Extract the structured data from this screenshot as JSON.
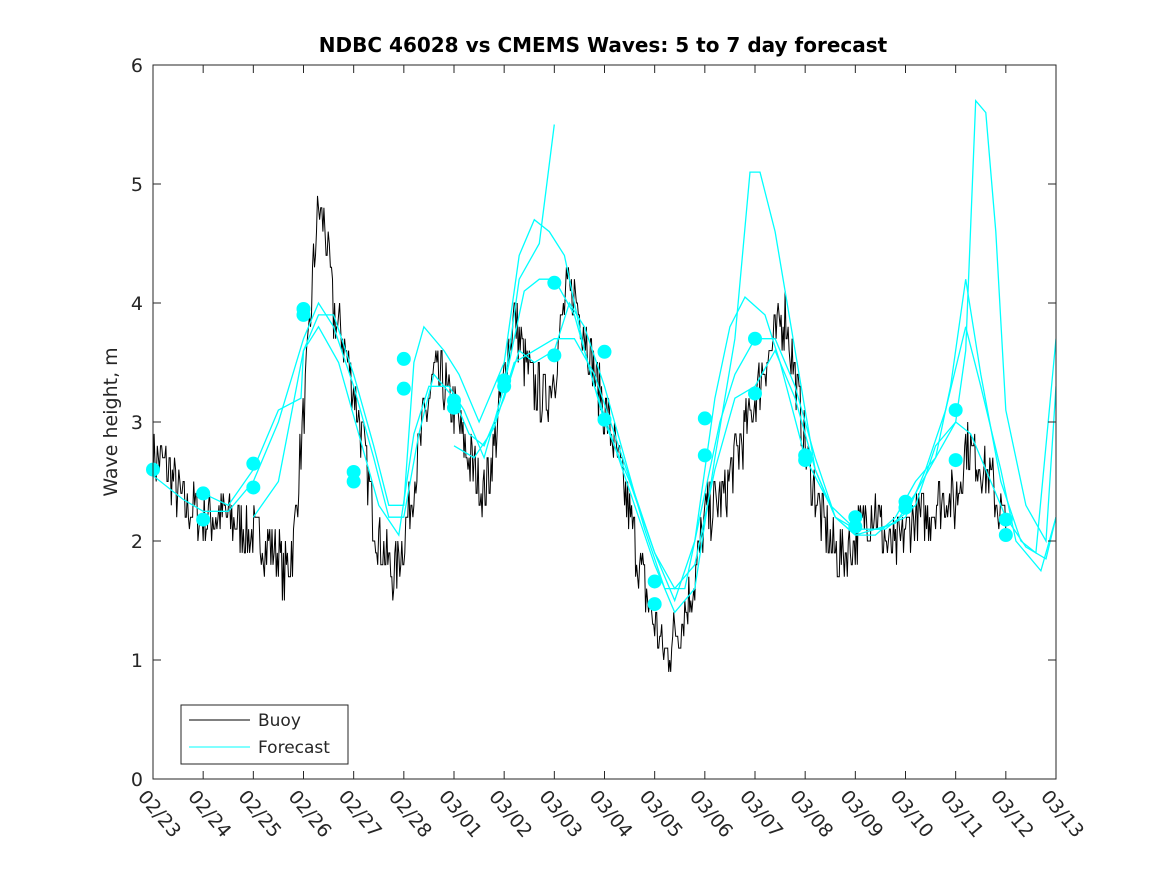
{
  "chart_data": {
    "type": "line",
    "title": "NDBC 46028 vs CMEMS Waves: 5 to 7 day forecast",
    "xlabel": "",
    "ylabel": "Wave height, m",
    "ylim": [
      0,
      6
    ],
    "yticks": [
      "0",
      "1",
      "2",
      "3",
      "4",
      "5",
      "6"
    ],
    "xlim": [
      0,
      18
    ],
    "xticks": [
      "02/23",
      "02/24",
      "02/25",
      "02/26",
      "02/27",
      "02/28",
      "03/01",
      "03/02",
      "03/03",
      "03/04",
      "03/05",
      "03/06",
      "03/07",
      "03/08",
      "03/09",
      "03/10",
      "03/11",
      "03/12",
      "03/13"
    ],
    "grid": false,
    "legend": {
      "position": "bottom-left",
      "entries": [
        "Buoy",
        "Forecast"
      ]
    },
    "colors": {
      "buoy": "#000000",
      "forecast": "#00ffff",
      "axis": "#262626"
    },
    "series": [
      {
        "name": "Buoy",
        "points": [
          [
            0,
            2.7
          ],
          [
            0.3,
            2.6
          ],
          [
            0.6,
            2.3
          ],
          [
            1,
            2.2
          ],
          [
            1.4,
            2.2
          ],
          [
            1.8,
            2.1
          ],
          [
            2.2,
            2.0
          ],
          [
            2.5,
            1.9
          ],
          [
            2.6,
            1.65
          ],
          [
            2.8,
            2.0
          ],
          [
            2.95,
            2.8
          ],
          [
            3.1,
            3.6
          ],
          [
            3.2,
            4.3
          ],
          [
            3.3,
            4.8
          ],
          [
            3.45,
            4.6
          ],
          [
            3.6,
            3.9
          ],
          [
            3.8,
            3.7
          ],
          [
            4.0,
            3.3
          ],
          [
            4.2,
            2.8
          ],
          [
            4.4,
            2.2
          ],
          [
            4.6,
            1.9
          ],
          [
            4.8,
            1.7
          ],
          [
            5.0,
            2.0
          ],
          [
            5.2,
            2.5
          ],
          [
            5.4,
            3.0
          ],
          [
            5.6,
            3.4
          ],
          [
            5.8,
            3.3
          ],
          [
            6.0,
            3.1
          ],
          [
            6.2,
            2.8
          ],
          [
            6.4,
            2.6
          ],
          [
            6.6,
            2.4
          ],
          [
            6.8,
            2.8
          ],
          [
            7.0,
            3.4
          ],
          [
            7.2,
            3.9
          ],
          [
            7.4,
            3.5
          ],
          [
            7.6,
            3.3
          ],
          [
            7.8,
            3.2
          ],
          [
            8.0,
            3.4
          ],
          [
            8.2,
            4.0
          ],
          [
            8.4,
            4.1
          ],
          [
            8.6,
            3.8
          ],
          [
            8.8,
            3.4
          ],
          [
            9.0,
            3.1
          ],
          [
            9.2,
            2.8
          ],
          [
            9.4,
            2.4
          ],
          [
            9.6,
            2.0
          ],
          [
            9.8,
            1.6
          ],
          [
            10.0,
            1.3
          ],
          [
            10.2,
            1.05
          ],
          [
            10.4,
            1.2
          ],
          [
            10.6,
            1.4
          ],
          [
            10.8,
            1.7
          ],
          [
            11.0,
            2.2
          ],
          [
            11.2,
            2.3
          ],
          [
            11.4,
            2.4
          ],
          [
            11.6,
            2.7
          ],
          [
            11.8,
            2.9
          ],
          [
            12.0,
            3.2
          ],
          [
            12.2,
            3.5
          ],
          [
            12.4,
            3.7
          ],
          [
            12.6,
            3.9
          ],
          [
            12.8,
            3.4
          ],
          [
            13.0,
            2.8
          ],
          [
            13.2,
            2.4
          ],
          [
            13.4,
            2.1
          ],
          [
            13.6,
            1.9
          ],
          [
            13.8,
            1.9
          ],
          [
            14.0,
            2.0
          ],
          [
            14.2,
            2.2
          ],
          [
            14.4,
            2.3
          ],
          [
            14.6,
            2.0
          ],
          [
            14.8,
            1.9
          ],
          [
            15.0,
            2.1
          ],
          [
            15.2,
            2.2
          ],
          [
            15.4,
            2.2
          ],
          [
            15.6,
            2.3
          ],
          [
            15.8,
            2.4
          ],
          [
            16.0,
            2.3
          ],
          [
            16.2,
            2.8
          ],
          [
            16.4,
            2.7
          ],
          [
            16.6,
            2.6
          ],
          [
            16.8,
            2.4
          ],
          [
            17.0,
            2.1
          ]
        ]
      },
      {
        "name": "Forecast",
        "line1": [
          [
            0,
            2.55
          ],
          [
            0.6,
            2.35
          ],
          [
            1.0,
            2.25
          ],
          [
            1.5,
            2.25
          ],
          [
            2.0,
            2.5
          ],
          [
            2.5,
            3.0
          ],
          [
            3.0,
            3.7
          ],
          [
            3.3,
            4.0
          ],
          [
            3.6,
            3.8
          ],
          [
            4.0,
            3.3
          ],
          [
            4.4,
            2.7
          ],
          [
            4.7,
            2.2
          ],
          [
            5.0,
            2.2
          ],
          [
            5.3,
            2.9
          ],
          [
            5.6,
            3.4
          ],
          [
            6.0,
            3.2
          ],
          [
            6.3,
            2.9
          ],
          [
            6.6,
            2.8
          ],
          [
            7.0,
            3.2
          ],
          [
            7.3,
            3.6
          ],
          [
            7.6,
            3.5
          ],
          [
            8.0,
            3.6
          ],
          [
            8.3,
            4.0
          ],
          [
            8.6,
            3.8
          ],
          [
            9.0,
            3.3
          ],
          [
            9.4,
            2.7
          ],
          [
            9.8,
            2.1
          ],
          [
            10.2,
            1.6
          ],
          [
            10.6,
            1.6
          ],
          [
            11.0,
            2.4
          ],
          [
            11.3,
            3.0
          ],
          [
            11.6,
            3.4
          ],
          [
            12.0,
            3.7
          ],
          [
            12.4,
            3.7
          ],
          [
            12.8,
            3.3
          ],
          [
            13.2,
            2.7
          ],
          [
            13.6,
            2.2
          ],
          [
            14.0,
            2.05
          ],
          [
            14.4,
            2.1
          ],
          [
            14.8,
            2.15
          ],
          [
            15.2,
            2.4
          ],
          [
            15.6,
            2.7
          ],
          [
            16.0,
            3.0
          ],
          [
            16.3,
            2.9
          ],
          [
            16.6,
            2.6
          ],
          [
            17.0,
            2.2
          ],
          [
            17.4,
            1.95
          ],
          [
            17.8,
            1.85
          ],
          [
            18.0,
            2.2
          ]
        ],
        "line2": [
          [
            1.0,
            2.4
          ],
          [
            1.5,
            2.3
          ],
          [
            2.0,
            2.6
          ],
          [
            2.5,
            3.1
          ],
          [
            2.95,
            3.2
          ],
          [
            3.0,
            3.6
          ],
          [
            3.3,
            3.9
          ],
          [
            3.6,
            3.9
          ],
          [
            4.0,
            3.4
          ],
          [
            4.4,
            2.8
          ],
          [
            4.7,
            2.3
          ],
          [
            5.0,
            2.3
          ],
          [
            5.2,
            3.5
          ],
          [
            5.4,
            3.8
          ],
          [
            5.8,
            3.6
          ],
          [
            6.1,
            3.4
          ],
          [
            6.5,
            3.0
          ],
          [
            7.0,
            3.5
          ],
          [
            7.3,
            4.4
          ],
          [
            7.6,
            4.7
          ],
          [
            7.9,
            4.6
          ],
          [
            8.2,
            4.4
          ],
          [
            8.6,
            3.6
          ],
          [
            9.0,
            3.0
          ],
          [
            9.5,
            2.5
          ],
          [
            10.0,
            1.9
          ],
          [
            10.4,
            1.5
          ],
          [
            10.8,
            2.0
          ],
          [
            11.2,
            3.2
          ],
          [
            11.5,
            3.8
          ],
          [
            11.8,
            4.05
          ],
          [
            12.2,
            3.9
          ],
          [
            12.5,
            3.5
          ],
          [
            13.0,
            2.7
          ],
          [
            13.5,
            2.3
          ],
          [
            14.0,
            2.1
          ],
          [
            14.5,
            2.1
          ],
          [
            15.0,
            2.2
          ],
          [
            15.4,
            2.6
          ],
          [
            15.8,
            3.1
          ],
          [
            16.2,
            3.8
          ],
          [
            16.5,
            3.3
          ],
          [
            16.9,
            2.6
          ],
          [
            17.2,
            2.0
          ],
          [
            17.7,
            1.75
          ],
          [
            18.0,
            2.2
          ]
        ],
        "line3": [
          [
            2.0,
            2.2
          ],
          [
            2.5,
            2.5
          ],
          [
            3.0,
            3.6
          ],
          [
            3.3,
            3.8
          ],
          [
            3.7,
            3.5
          ],
          [
            4.1,
            2.9
          ],
          [
            4.5,
            2.3
          ],
          [
            4.9,
            2.05
          ],
          [
            5.2,
            2.9
          ],
          [
            5.5,
            3.3
          ],
          [
            5.9,
            3.3
          ],
          [
            6.2,
            3.1
          ],
          [
            6.6,
            2.7
          ],
          [
            7.0,
            3.3
          ],
          [
            7.4,
            4.1
          ],
          [
            7.7,
            4.2
          ],
          [
            8.0,
            4.2
          ],
          [
            8.4,
            3.9
          ],
          [
            8.8,
            3.3
          ],
          [
            9.2,
            2.8
          ],
          [
            9.6,
            2.3
          ],
          [
            10.0,
            1.8
          ],
          [
            10.4,
            1.4
          ],
          [
            10.8,
            1.6
          ],
          [
            11.2,
            2.7
          ],
          [
            11.6,
            3.7
          ],
          [
            11.9,
            5.1
          ],
          [
            12.1,
            5.1
          ],
          [
            12.4,
            4.6
          ],
          [
            12.8,
            3.6
          ],
          [
            13.2,
            2.6
          ],
          [
            13.6,
            2.2
          ],
          [
            14.0,
            2.05
          ],
          [
            14.4,
            2.05
          ],
          [
            14.8,
            2.2
          ],
          [
            15.2,
            2.5
          ],
          [
            15.6,
            2.7
          ],
          [
            15.9,
            3.3
          ],
          [
            16.2,
            4.2
          ],
          [
            16.5,
            3.4
          ],
          [
            16.9,
            2.5
          ],
          [
            17.3,
            2.0
          ],
          [
            17.6,
            1.9
          ],
          [
            18.0,
            3.7
          ]
        ],
        "line4": [
          [
            6.0,
            2.8
          ],
          [
            6.4,
            2.7
          ],
          [
            6.8,
            2.95
          ],
          [
            7.2,
            3.5
          ],
          [
            7.6,
            3.6
          ],
          [
            8.0,
            3.7
          ],
          [
            8.4,
            3.7
          ],
          [
            8.8,
            3.4
          ],
          [
            9.2,
            2.9
          ],
          [
            9.6,
            2.4
          ],
          [
            10.0,
            1.9
          ],
          [
            10.4,
            1.6
          ],
          [
            10.8,
            1.8
          ],
          [
            11.2,
            2.6
          ],
          [
            11.6,
            3.2
          ],
          [
            12.0,
            3.3
          ],
          [
            12.4,
            3.6
          ],
          [
            12.8,
            3.2
          ],
          [
            13.2,
            2.6
          ],
          [
            13.6,
            2.2
          ],
          [
            14.0,
            2.1
          ],
          [
            14.6,
            2.1
          ],
          [
            15.2,
            2.3
          ],
          [
            15.6,
            2.8
          ],
          [
            16.0,
            3.0
          ],
          [
            16.2,
            3.6
          ],
          [
            16.4,
            5.7
          ],
          [
            16.6,
            5.6
          ],
          [
            16.8,
            4.6
          ],
          [
            17.0,
            3.1
          ],
          [
            17.4,
            2.3
          ],
          [
            17.8,
            2.0
          ],
          [
            18.0,
            3.3
          ]
        ],
        "line5": [
          [
            7.0,
            3.3
          ],
          [
            7.3,
            4.2
          ],
          [
            7.7,
            4.5
          ],
          [
            8.0,
            5.5
          ]
        ]
      },
      {
        "name": "Forecast markers",
        "points": [
          [
            0,
            2.6
          ],
          [
            1,
            2.4
          ],
          [
            1,
            2.18
          ],
          [
            2,
            2.65
          ],
          [
            2,
            2.45
          ],
          [
            3,
            3.95
          ],
          [
            3,
            3.9
          ],
          [
            4,
            2.58
          ],
          [
            4,
            2.5
          ],
          [
            5,
            3.53
          ],
          [
            5,
            3.28
          ],
          [
            6,
            3.18
          ],
          [
            6,
            3.12
          ],
          [
            7,
            3.35
          ],
          [
            7,
            3.3
          ],
          [
            8,
            4.17
          ],
          [
            8,
            3.56
          ],
          [
            9,
            3.59
          ],
          [
            9,
            3.02
          ],
          [
            10,
            1.66
          ],
          [
            10,
            1.47
          ],
          [
            11,
            3.03
          ],
          [
            11,
            2.72
          ],
          [
            12,
            3.7
          ],
          [
            12,
            3.24
          ],
          [
            13,
            2.72
          ],
          [
            13,
            2.68
          ],
          [
            14,
            2.2
          ],
          [
            14,
            2.12
          ],
          [
            15,
            2.33
          ],
          [
            15,
            2.28
          ],
          [
            16,
            3.1
          ],
          [
            16,
            2.68
          ],
          [
            17,
            2.18
          ],
          [
            17,
            2.05
          ]
        ]
      }
    ]
  }
}
